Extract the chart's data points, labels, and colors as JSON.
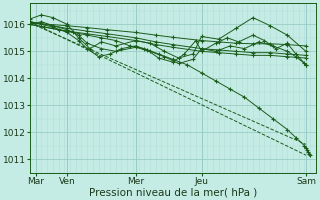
{
  "background_color": "#c5ece4",
  "plot_bg_color": "#c5ece4",
  "line_color": "#1a5c1a",
  "grid_color_minor": "#b0ddd6",
  "grid_color_major": "#90c8c0",
  "xlim": [
    0,
    1
  ],
  "ylim": [
    1010.5,
    1016.8
  ],
  "yticks": [
    1011,
    1012,
    1013,
    1014,
    1015,
    1016
  ],
  "xlabel": "Pression niveau de la mer( hPa )",
  "xlabel_fontsize": 7.5,
  "xtick_labels": [
    "Mar",
    "Ven",
    "Mer",
    "Jeu",
    "Sam"
  ],
  "xtick_positions": [
    0.02,
    0.13,
    0.37,
    0.6,
    0.965
  ],
  "marker": "+",
  "marker_size": 2.5,
  "linewidth": 0.7,
  "lines": [
    {
      "x": [
        0.0,
        0.13,
        0.2,
        0.27,
        0.37,
        0.44,
        0.5,
        0.6,
        0.66,
        0.72,
        0.78,
        0.84,
        0.9,
        0.965
      ],
      "y": [
        1016.1,
        1015.85,
        1015.75,
        1015.65,
        1015.5,
        1015.35,
        1015.25,
        1015.1,
        1015.05,
        1015.0,
        1014.95,
        1014.95,
        1014.9,
        1014.85
      ],
      "dashed": false
    },
    {
      "x": [
        0.0,
        0.13,
        0.2,
        0.27,
        0.37,
        0.44,
        0.5,
        0.6,
        0.66,
        0.72,
        0.78,
        0.84,
        0.9,
        0.965
      ],
      "y": [
        1016.0,
        1015.75,
        1015.65,
        1015.55,
        1015.4,
        1015.25,
        1015.15,
        1015.0,
        1014.95,
        1014.9,
        1014.85,
        1014.85,
        1014.8,
        1014.75
      ],
      "dashed": false
    },
    {
      "x": [
        0.0,
        0.13,
        0.2,
        0.27,
        0.37,
        0.44,
        0.5,
        0.6,
        0.66,
        0.72,
        0.78,
        0.84,
        0.9,
        0.965
      ],
      "y": [
        1016.05,
        1015.95,
        1015.88,
        1015.8,
        1015.7,
        1015.6,
        1015.52,
        1015.4,
        1015.35,
        1015.3,
        1015.28,
        1015.28,
        1015.25,
        1015.2
      ],
      "dashed": false
    },
    {
      "x": [
        0.0,
        0.04,
        0.08,
        0.13,
        0.17,
        0.21,
        0.25,
        0.3,
        0.37,
        0.42,
        0.47,
        0.52,
        0.57,
        0.6,
        0.66,
        0.72,
        0.78,
        0.84,
        0.9,
        0.965
      ],
      "y": [
        1016.2,
        1016.35,
        1016.25,
        1016.0,
        1015.5,
        1015.1,
        1015.35,
        1015.2,
        1015.4,
        1015.3,
        1015.0,
        1014.75,
        1014.9,
        1015.55,
        1015.45,
        1015.85,
        1016.25,
        1015.95,
        1015.6,
        1015.0
      ],
      "dashed": false
    },
    {
      "x": [
        0.0,
        0.04,
        0.08,
        0.13,
        0.17,
        0.2,
        0.24,
        0.28,
        0.32,
        0.37,
        0.41,
        0.45,
        0.5,
        0.54,
        0.58,
        0.6,
        0.65,
        0.69,
        0.73,
        0.78,
        0.82,
        0.86,
        0.9,
        0.93,
        0.965
      ],
      "y": [
        1016.1,
        1016.0,
        1015.9,
        1015.7,
        1015.4,
        1015.1,
        1014.8,
        1014.9,
        1015.1,
        1015.2,
        1015.05,
        1014.75,
        1014.6,
        1014.9,
        1015.4,
        1015.0,
        1015.3,
        1015.5,
        1015.35,
        1015.6,
        1015.4,
        1015.1,
        1015.3,
        1014.9,
        1014.5
      ],
      "dashed": false
    },
    {
      "x": [
        0.0,
        0.04,
        0.08,
        0.13,
        0.17,
        0.2,
        0.25,
        0.3,
        0.37,
        0.42,
        0.47,
        0.52,
        0.57,
        0.6,
        0.65,
        0.7,
        0.75,
        0.8,
        0.85,
        0.9,
        0.93,
        0.96,
        0.965
      ],
      "y": [
        1016.0,
        1016.1,
        1015.95,
        1015.8,
        1015.6,
        1015.3,
        1015.1,
        1015.0,
        1015.15,
        1015.0,
        1014.8,
        1014.55,
        1014.7,
        1015.1,
        1015.0,
        1015.2,
        1015.1,
        1015.35,
        1015.2,
        1015.0,
        1014.8,
        1014.55,
        1014.5
      ],
      "dashed": false
    },
    {
      "x": [
        0.0,
        0.965
      ],
      "y": [
        1016.1,
        1011.15
      ],
      "dashed": true
    },
    {
      "x": [
        0.0,
        0.965
      ],
      "y": [
        1016.05,
        1011.55
      ],
      "dashed": true
    },
    {
      "x": [
        0.0,
        0.05,
        0.1,
        0.15,
        0.2,
        0.25,
        0.3,
        0.35,
        0.4,
        0.45,
        0.5,
        0.55,
        0.6,
        0.65,
        0.7,
        0.75,
        0.8,
        0.85,
        0.9,
        0.93,
        0.96,
        0.965,
        0.968,
        0.972,
        0.975,
        0.978
      ],
      "y": [
        1016.0,
        1015.9,
        1015.8,
        1015.7,
        1015.6,
        1015.5,
        1015.4,
        1015.2,
        1015.1,
        1014.9,
        1014.7,
        1014.5,
        1014.2,
        1013.9,
        1013.6,
        1013.3,
        1012.9,
        1012.5,
        1012.1,
        1011.8,
        1011.5,
        1011.4,
        1011.35,
        1011.25,
        1011.2,
        1011.15
      ],
      "dashed": false
    }
  ]
}
